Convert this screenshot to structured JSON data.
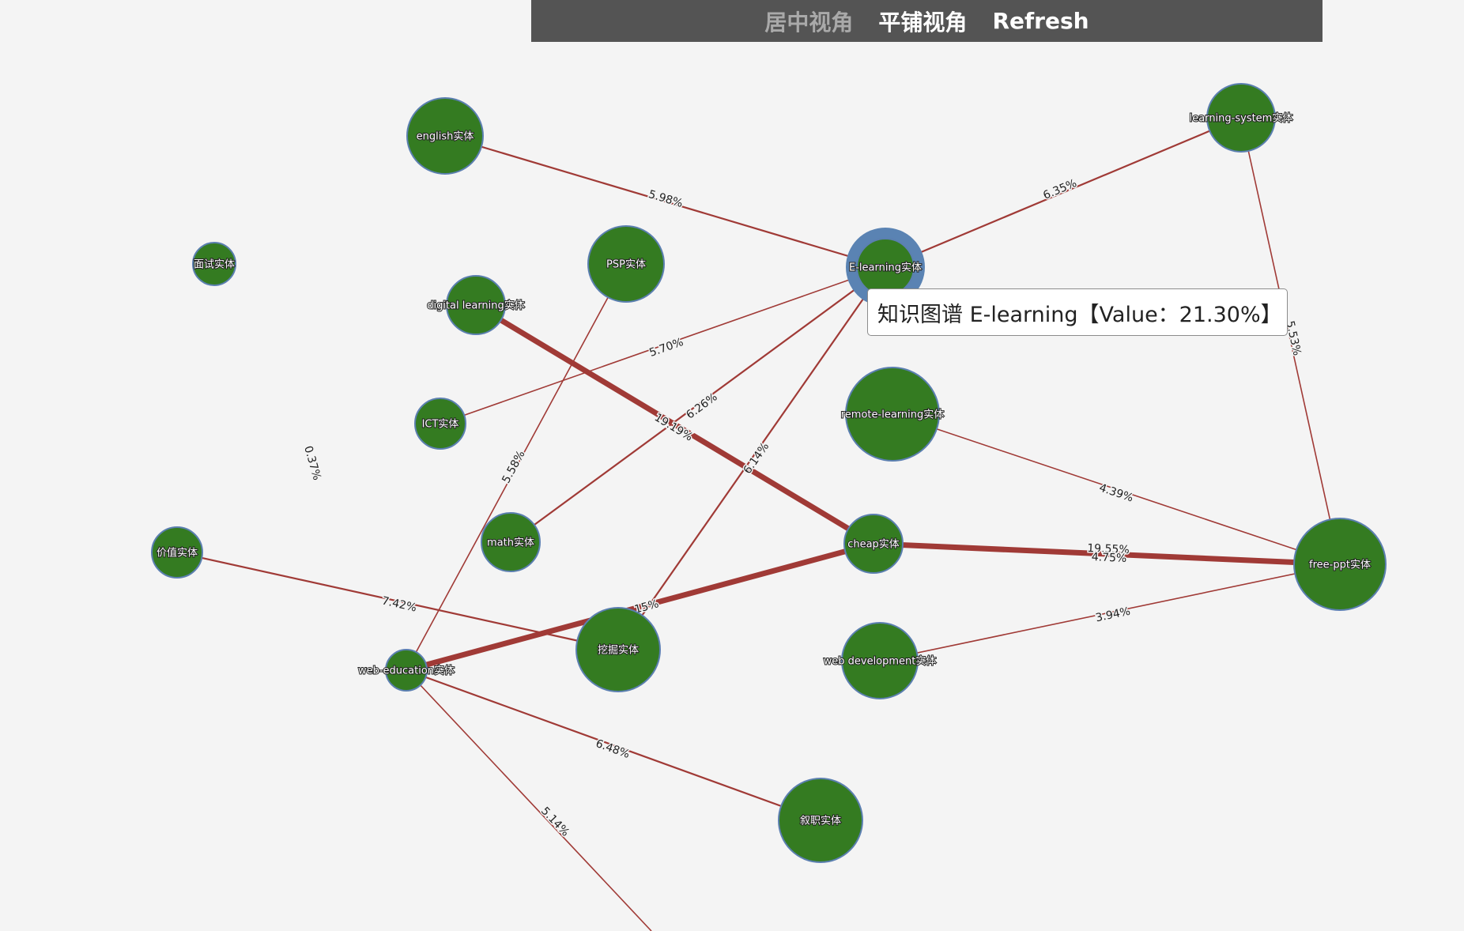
{
  "toolbar": {
    "center_view_label": "居中视角",
    "tile_view_label": "平铺视角",
    "refresh_label": "Refresh"
  },
  "tooltip": {
    "text": "知识图谱 E-learning【Value：21.30%】"
  },
  "colors": {
    "node_fill": "#347b21",
    "node_stroke": "#5b7fb0",
    "edge": "#a03a36",
    "selected_ring": "#5a83b3",
    "toolbar_bg": "#545454"
  },
  "graph": {
    "nodes": [
      {
        "id": "english",
        "label": "english实体"
      },
      {
        "id": "mianshi",
        "label": "面试实体"
      },
      {
        "id": "psp",
        "label": "PSP实体"
      },
      {
        "id": "elearning",
        "label": "E-learning实体",
        "selected": true
      },
      {
        "id": "learningsystem",
        "label": "learning-system实体"
      },
      {
        "id": "digital",
        "label": "digital learning实体"
      },
      {
        "id": "ict",
        "label": "ICT实体"
      },
      {
        "id": "remote",
        "label": "remote-learning实体"
      },
      {
        "id": "math",
        "label": "math实体"
      },
      {
        "id": "cheap",
        "label": "cheap实体"
      },
      {
        "id": "freeppt",
        "label": "free-ppt实体"
      },
      {
        "id": "jiazhi",
        "label": "价值实体"
      },
      {
        "id": "wajue",
        "label": "挖掘实体"
      },
      {
        "id": "webdev",
        "label": "web development实体"
      },
      {
        "id": "webedu",
        "label": "web-education实体"
      },
      {
        "id": "xuzhi",
        "label": "叙职实体"
      }
    ],
    "edges": [
      {
        "source": "english",
        "target": "elearning",
        "label": "5.98%",
        "weight": 5.98
      },
      {
        "source": "elearning",
        "target": "learningsystem",
        "label": "6.35%",
        "weight": 6.35
      },
      {
        "source": "learningsystem",
        "target": "freeppt",
        "label": "5.53%",
        "weight": 5.53
      },
      {
        "source": "ict",
        "target": "elearning",
        "label": "5.70%",
        "weight": 5.7
      },
      {
        "source": "math",
        "target": "elearning",
        "label": "6.26%",
        "weight": 6.26
      },
      {
        "source": "wajue",
        "target": "elearning",
        "label": "6.14%",
        "weight": 6.14
      },
      {
        "source": "digital",
        "target": "cheap",
        "label": "19.19%",
        "weight": 19.19
      },
      {
        "source": "cheap",
        "target": "freeppt",
        "label": "19.55%",
        "weight": 19.55
      },
      {
        "source": "cheap",
        "target": "freeppt",
        "label": "4.75%",
        "weight": 4.75
      },
      {
        "source": "remote",
        "target": "freeppt",
        "label": "4.39%",
        "weight": 4.39
      },
      {
        "source": "webdev",
        "target": "freeppt",
        "label": "3.94%",
        "weight": 3.94
      },
      {
        "source": "webedu",
        "target": "cheap",
        "label": "15%",
        "weight": 15
      },
      {
        "source": "psp",
        "target": "webedu",
        "label": "5.58%",
        "weight": 5.58
      },
      {
        "source": "jiazhi",
        "target": "wajue",
        "label": "7.42%",
        "weight": 7.42
      },
      {
        "source": "webedu",
        "target": "xuzhi",
        "label": "6.48%",
        "weight": 6.48
      },
      {
        "source": "webedu",
        "target": "offscreen",
        "label": "5.14%",
        "weight": 5.14
      },
      {
        "source": "mianshi",
        "target": "webedu",
        "label": "0.37%",
        "weight": 0.37
      }
    ]
  }
}
